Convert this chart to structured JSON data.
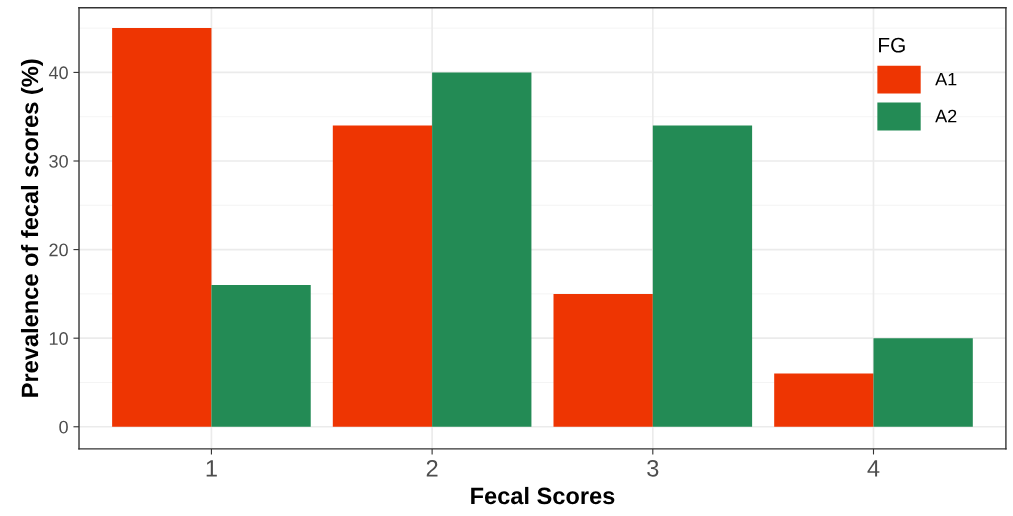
{
  "chart_data": {
    "type": "bar",
    "xlabel": "Fecal Scores",
    "ylabel": "Prevalence of fecal scores (%)",
    "legend_title": "FG",
    "categories": [
      "1",
      "2",
      "3",
      "4"
    ],
    "series": [
      {
        "name": "A1",
        "color": "#ee3502",
        "values": [
          45,
          34,
          15,
          6
        ]
      },
      {
        "name": "A2",
        "color": "#238b55",
        "values": [
          16,
          40,
          34,
          10
        ]
      }
    ],
    "ylim": [
      -2.5,
      47.3
    ],
    "yticks": [
      0,
      10,
      20,
      30,
      40
    ],
    "grid": true,
    "legend": "top right"
  }
}
